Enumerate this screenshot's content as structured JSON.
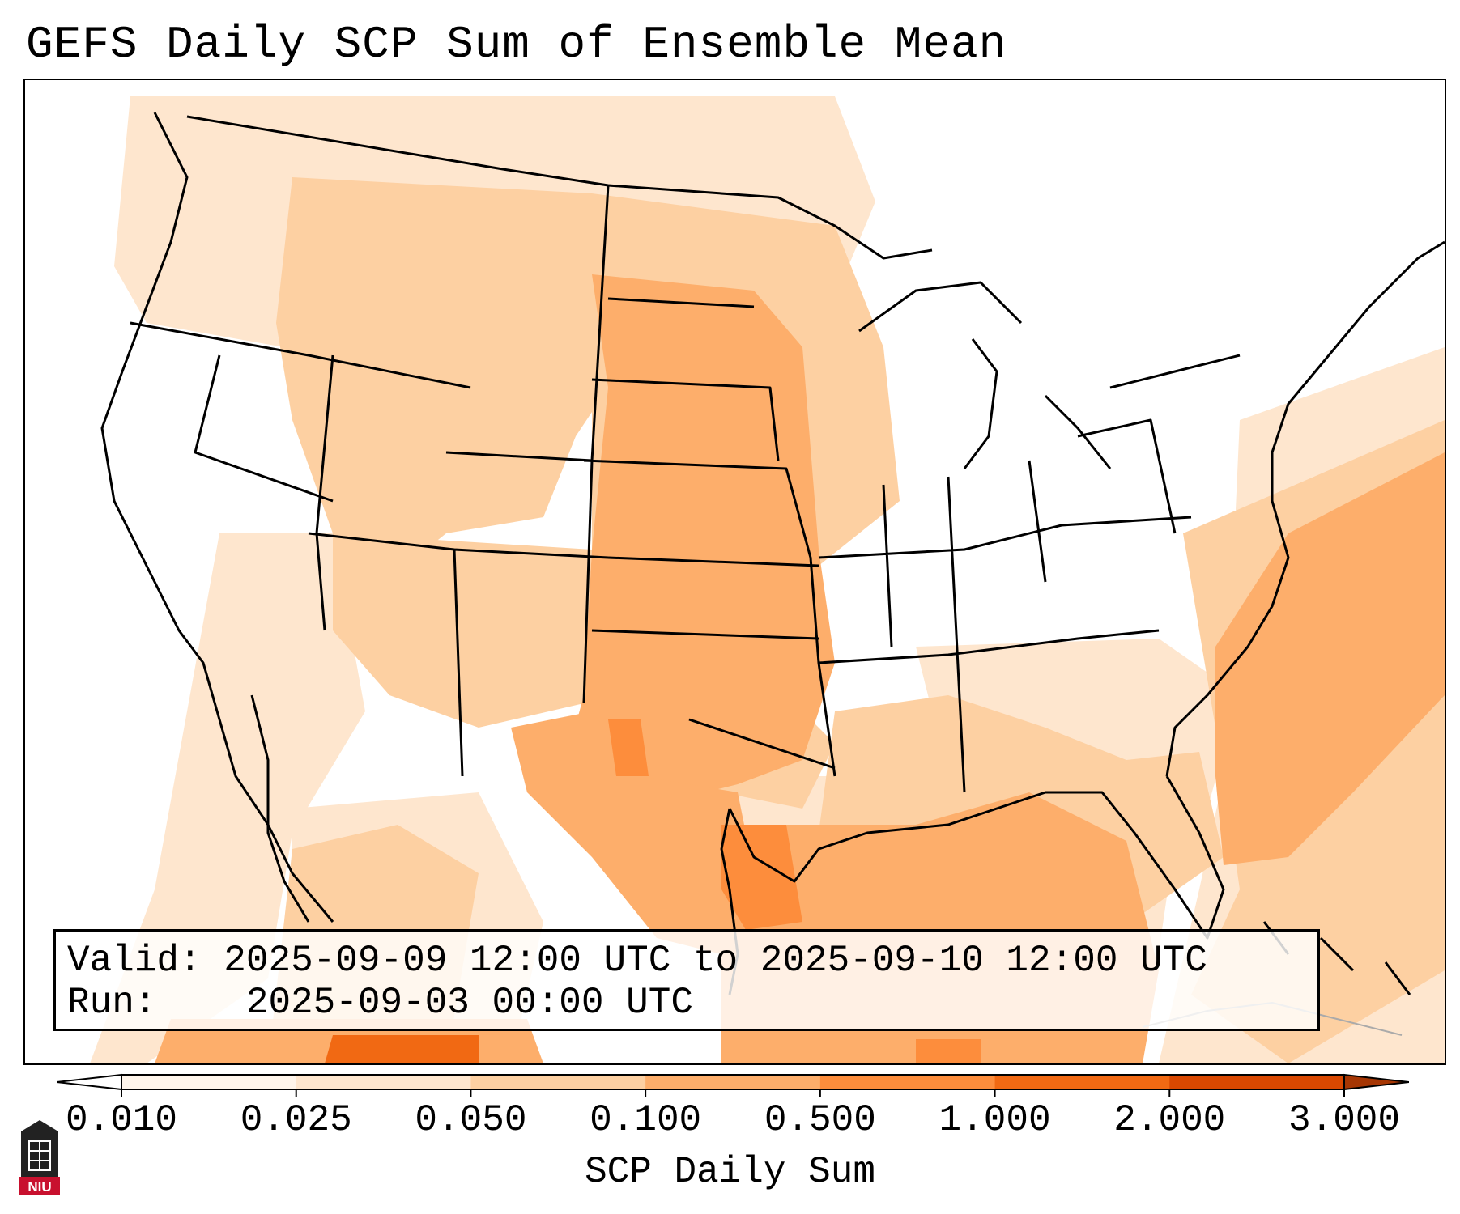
{
  "title": "GEFS Daily SCP Sum of Ensemble Mean",
  "info": {
    "valid_label": "Valid:",
    "valid_value": "2025-09-09 12:00 UTC to 2025-09-10 12:00 UTC",
    "run_label": "Run:",
    "run_value": "2025-09-03 00:00 UTC"
  },
  "colorbar": {
    "label": "SCP Daily Sum",
    "ticks": [
      "0.010",
      "0.025",
      "0.050",
      "0.100",
      "0.500",
      "1.000",
      "2.000",
      "3.000"
    ],
    "colors": [
      "#fff5eb",
      "#fee6ce",
      "#fdd0a2",
      "#fdae6b",
      "#fd8d3c",
      "#f16913",
      "#d94801"
    ],
    "extend": "both"
  },
  "logo": {
    "text": "NIU",
    "color": "#c8102e"
  }
}
